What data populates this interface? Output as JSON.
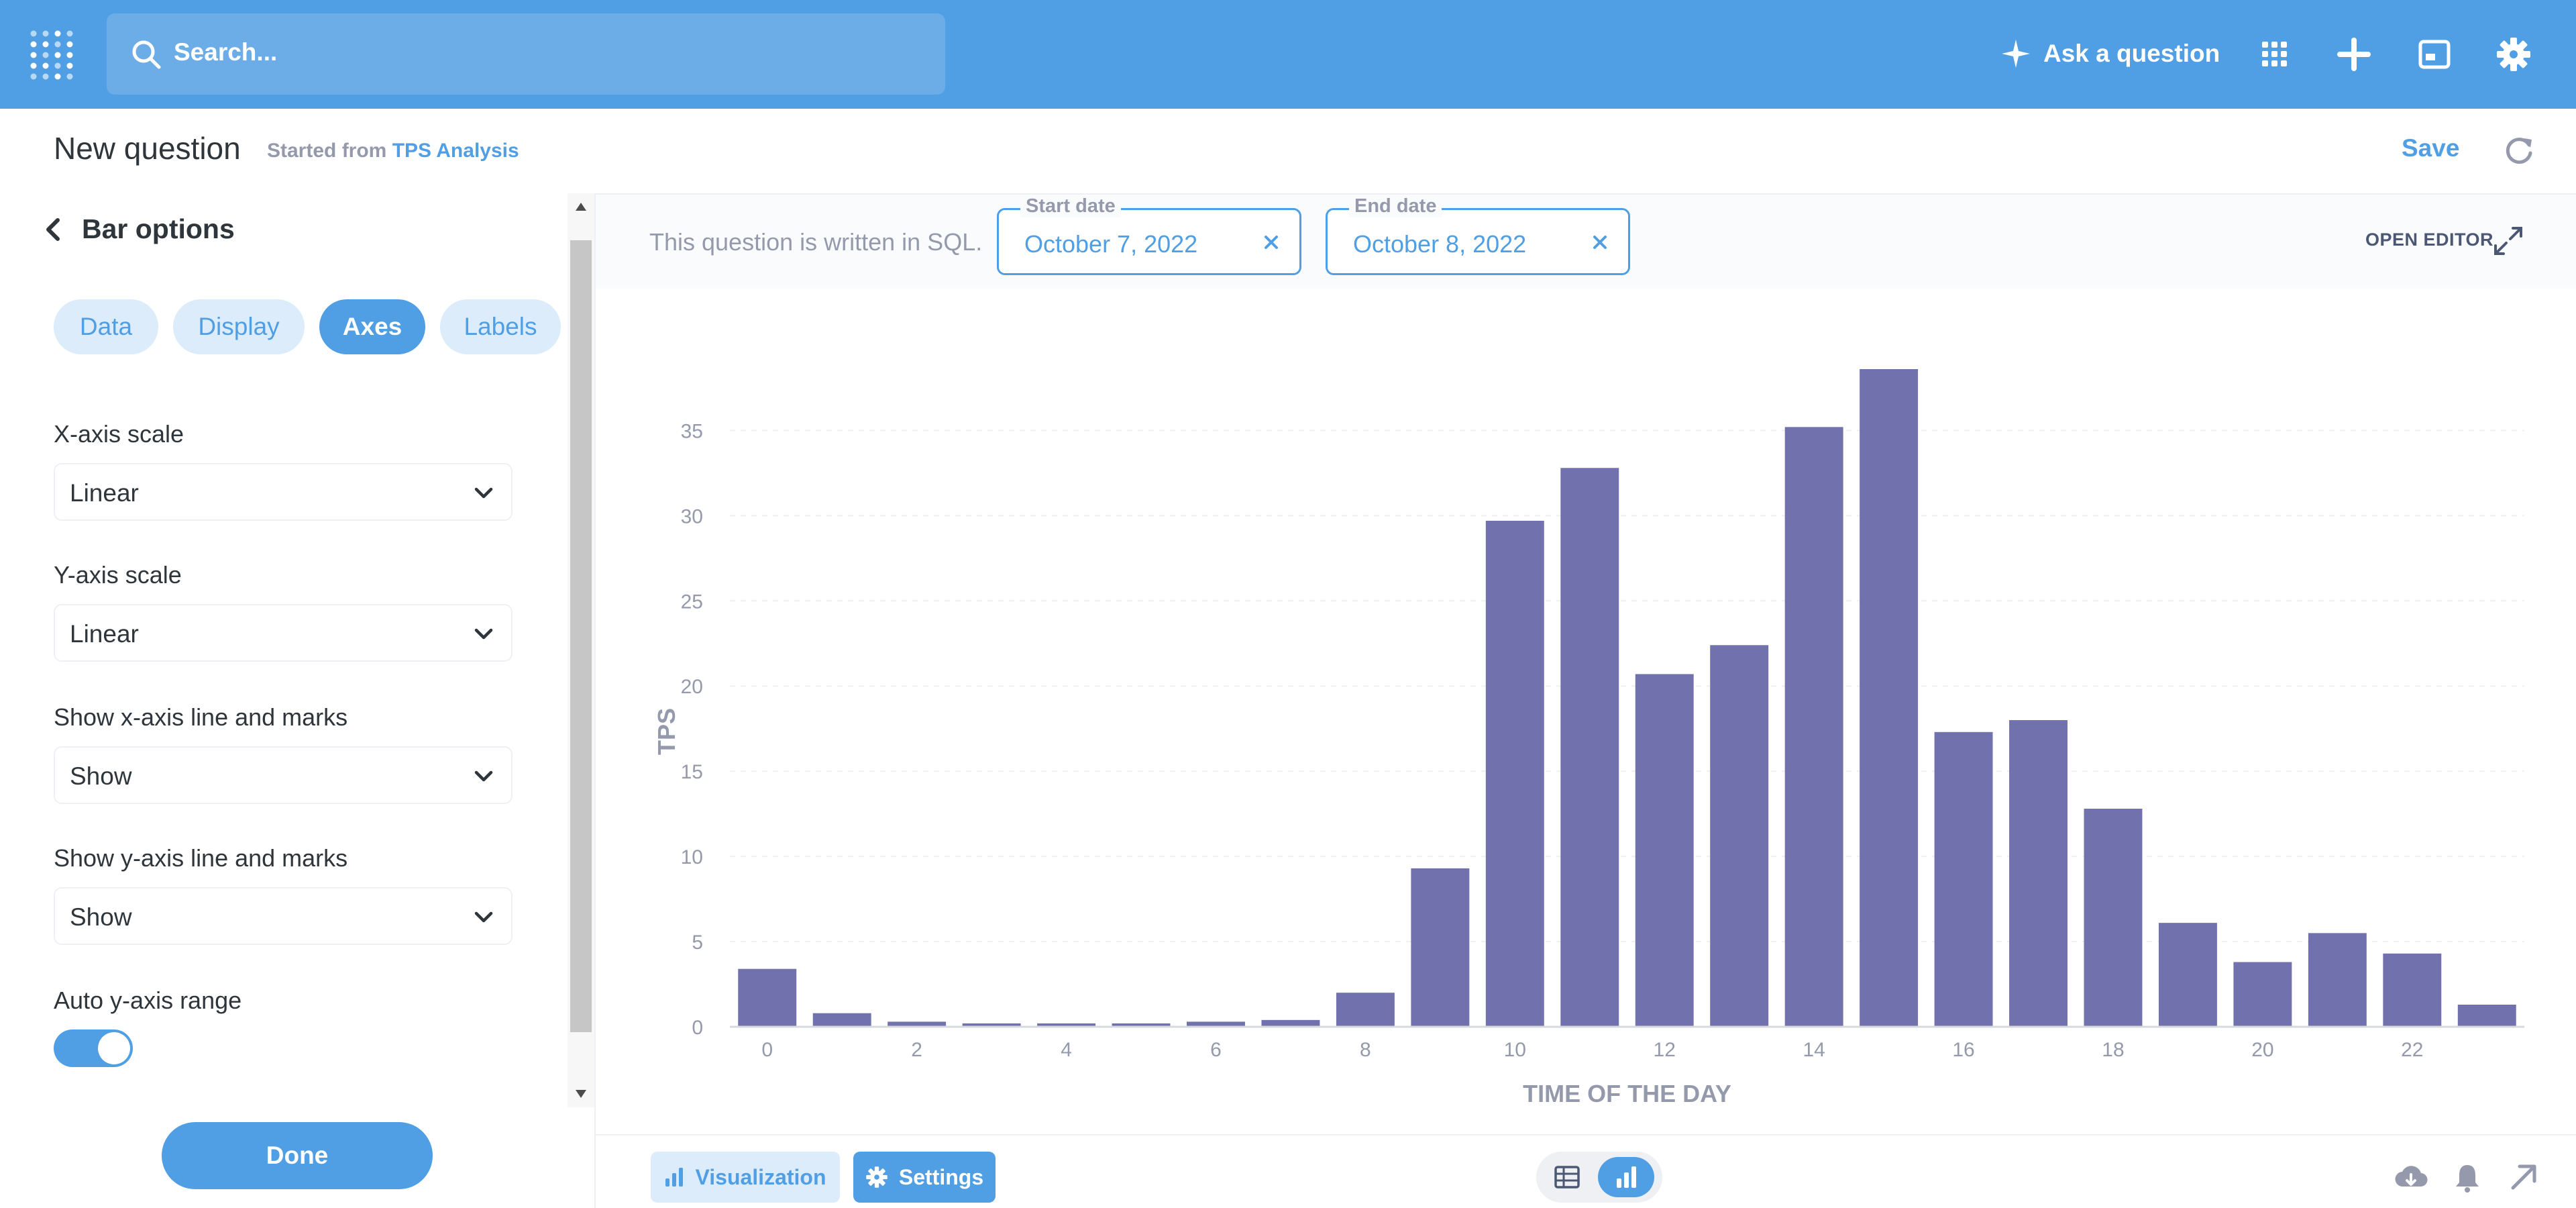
{
  "nav": {
    "search_placeholder": "Search...",
    "ask_label": "Ask a question",
    "icons": [
      "logo-icon",
      "search-icon",
      "sparkle-icon",
      "grid-icon",
      "plus-icon",
      "notebook-icon",
      "gear-icon"
    ]
  },
  "header": {
    "title": "New question",
    "started_from": "Started from",
    "source_link": "TPS Analysis",
    "save_label": "Save"
  },
  "sidebar": {
    "back_label": "Bar options",
    "tabs": [
      "Data",
      "Display",
      "Axes",
      "Labels"
    ],
    "active_tab": "Axes",
    "settings": [
      {
        "label": "X-axis scale",
        "value": "Linear"
      },
      {
        "label": "Y-axis scale",
        "value": "Linear"
      },
      {
        "label": "Show x-axis line and marks",
        "value": "Show"
      },
      {
        "label": "Show y-axis line and marks",
        "value": "Show"
      }
    ],
    "auto_range_label": "Auto y-axis range",
    "auto_range_on": true,
    "done_label": "Done"
  },
  "filters": {
    "sql_note": "This question is written in SQL.",
    "start_label": "Start date",
    "start_value": "October 7, 2022",
    "end_label": "End date",
    "end_value": "October 8, 2022",
    "open_editor": "OPEN EDITOR"
  },
  "footer": {
    "visualization": "Visualization",
    "settings": "Settings"
  },
  "colors": {
    "brand": "#509ee3",
    "bar": "#7172ad",
    "text": "#4c5773"
  },
  "chart_data": {
    "type": "bar",
    "x": [
      0,
      1,
      2,
      3,
      4,
      5,
      6,
      7,
      8,
      9,
      10,
      11,
      12,
      13,
      14,
      15,
      16,
      17,
      18,
      19,
      20,
      21,
      22,
      23
    ],
    "values": [
      3.4,
      0.8,
      0.3,
      0.2,
      0.2,
      0.2,
      0.3,
      0.4,
      2.0,
      9.3,
      29.7,
      32.8,
      20.7,
      22.4,
      35.2,
      38.6,
      17.3,
      18.0,
      12.8,
      6.1,
      3.8,
      5.5,
      4.3,
      1.3
    ],
    "xticks": [
      0,
      2,
      4,
      6,
      8,
      10,
      12,
      14,
      16,
      18,
      20,
      22
    ],
    "yticks": [
      0,
      5,
      10,
      15,
      20,
      25,
      30,
      35
    ],
    "xlabel": "TIME OF THE DAY",
    "ylabel": "TPS",
    "ylim": [
      0,
      38.6
    ],
    "grid": true
  }
}
